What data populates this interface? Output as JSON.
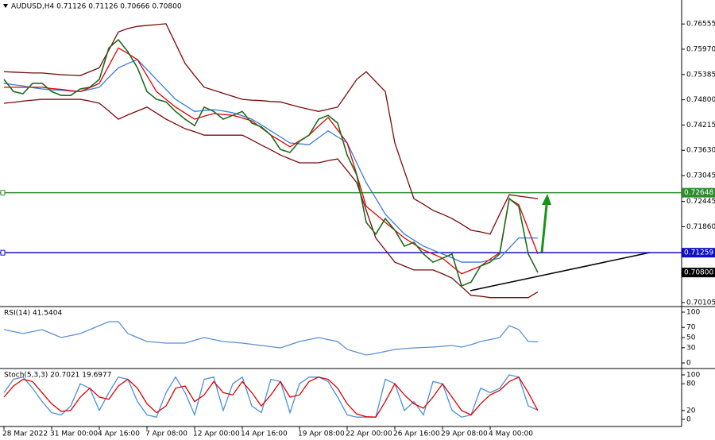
{
  "chart_data": [
    {
      "type": "line",
      "title": "AUDUSD,H4  0.71126 0.71126 0.70666 0.70800",
      "categories": [
        "28 Mar 2022",
        null,
        null,
        null,
        null,
        "31 Mar 00:00",
        null,
        null,
        null,
        null,
        "4 Apr 16:00",
        null,
        null,
        null,
        null,
        "7 Apr 08:00",
        null,
        null,
        null,
        null,
        "12 Apr 00:00",
        null,
        null,
        null,
        null,
        "14 Apr 16:00",
        null,
        null,
        null,
        null,
        null,
        "19 Apr 08:00",
        null,
        null,
        null,
        null,
        "22 Apr 00:00",
        null,
        null,
        null,
        null,
        "26 Apr 16:00",
        null,
        null,
        null,
        null,
        "29 Apr 08:00",
        null,
        null,
        null,
        null,
        "4 May 00:00",
        null,
        null,
        null,
        null,
        null
      ],
      "series": [
        {
          "color": "#7a0a0a",
          "values": [
            0.7545,
            0.7544,
            0.7543,
            0.7542,
            0.7542,
            0.754,
            0.7538,
            0.7537,
            0.7536,
            0.7545,
            0.7554,
            0.7595,
            0.7637,
            0.7645,
            0.765,
            0.7652,
            0.7654,
            0.7656,
            0.761,
            0.7564,
            0.7536,
            0.7509,
            0.7502,
            0.7495,
            0.7488,
            0.7481,
            0.7479,
            0.7478,
            0.7476,
            0.7475,
            0.7469,
            0.7463,
            0.7458,
            0.7453,
            0.7458,
            0.7463,
            0.7495,
            0.7527,
            0.7545,
            0.7522,
            0.7499,
            0.738,
            0.7315,
            0.7251,
            0.7238,
            0.7224,
            0.7215,
            0.7205,
            0.7192,
            0.7178,
            0.7174,
            0.7169,
            0.7215,
            0.726,
            0.7257,
            0.7254,
            0.7251
          ]
        },
        {
          "color": "#7a0a0a",
          "values": [
            0.7472,
            0.7474,
            0.7477,
            0.7479,
            0.7481,
            0.7481,
            0.7481,
            0.7481,
            0.7481,
            0.7477,
            0.7472,
            0.7454,
            0.7435,
            0.7445,
            0.7454,
            0.7463,
            0.7449,
            0.7435,
            0.7424,
            0.7413,
            0.7406,
            0.7398,
            0.7398,
            0.7398,
            0.7398,
            0.7398,
            0.7387,
            0.7375,
            0.7364,
            0.7352,
            0.7343,
            0.7334,
            0.7334,
            0.7334,
            0.7339,
            0.7343,
            0.7316,
            0.7288,
            0.7224,
            0.716,
            0.7132,
            0.7104,
            0.7095,
            0.7086,
            0.7086,
            0.7086,
            0.7077,
            0.7067,
            0.7047,
            0.7027,
            0.7025,
            0.7022,
            0.7022,
            0.7022,
            0.7022,
            0.7022,
            0.7035
          ]
        },
        {
          "color": "#3d7bd9",
          "values": [
            0.7518,
            0.7515,
            0.7512,
            0.7508,
            0.7505,
            0.7503,
            0.7502,
            0.75,
            0.7499,
            0.7504,
            0.7509,
            0.7532,
            0.7554,
            0.7564,
            0.7573,
            0.755,
            0.7527,
            0.7504,
            0.7481,
            0.7467,
            0.7453,
            0.7455,
            0.7457,
            0.7454,
            0.745,
            0.7443,
            0.7435,
            0.7422,
            0.7408,
            0.7394,
            0.738,
            0.7378,
            0.7376,
            0.7392,
            0.7408,
            0.7394,
            0.738,
            0.7334,
            0.7288,
            0.7252,
            0.7215,
            0.7192,
            0.7169,
            0.7155,
            0.7141,
            0.7132,
            0.7123,
            0.7114,
            0.7104,
            0.7104,
            0.7104,
            0.7109,
            0.7113,
            0.7137,
            0.716,
            0.716,
            0.716
          ]
        },
        {
          "color": "#e00000",
          "values": [
            0.7509,
            0.7509,
            0.7509,
            0.7509,
            0.7509,
            0.7506,
            0.7504,
            0.7501,
            0.7499,
            0.7508,
            0.7518,
            0.7559,
            0.76,
            0.7587,
            0.7573,
            0.7536,
            0.7499,
            0.7481,
            0.7463,
            0.7449,
            0.7435,
            0.7442,
            0.7448,
            0.7446,
            0.7444,
            0.7438,
            0.7431,
            0.7415,
            0.7398,
            0.7385,
            0.7371,
            0.7385,
            0.7398,
            0.7419,
            0.7439,
            0.741,
            0.738,
            0.7307,
            0.7233,
            0.7215,
            0.7196,
            0.7178,
            0.716,
            0.7146,
            0.7132,
            0.7123,
            0.7113,
            0.7095,
            0.7077,
            0.7086,
            0.7095,
            0.7111,
            0.7126,
            0.7251,
            0.7237,
            0.718,
            0.7123
          ]
        },
        {
          "color": "#1f6b1f",
          "values": [
            0.7527,
            0.7499,
            0.7494,
            0.7518,
            0.7518,
            0.7499,
            0.749,
            0.749,
            0.7505,
            0.7509,
            0.7527,
            0.76,
            0.7619,
            0.7591,
            0.7554,
            0.7499,
            0.7481,
            0.7475,
            0.7453,
            0.7435,
            0.742,
            0.7463,
            0.7453,
            0.7435,
            0.7444,
            0.7453,
            0.7426,
            0.7417,
            0.7398,
            0.7365,
            0.7358,
            0.7384,
            0.7398,
            0.7435,
            0.7444,
            0.7426,
            0.7352,
            0.7306,
            0.7196,
            0.7169,
            0.7205,
            0.7178,
            0.7141,
            0.715,
            0.7123,
            0.7104,
            0.7113,
            0.7123,
            0.7049,
            0.7058,
            0.7095,
            0.7104,
            0.7123,
            0.7251,
            0.7233,
            0.7123,
            0.708
          ]
        }
      ],
      "hlines": [
        {
          "value": 0.72648,
          "label": "0.72648",
          "color": "#2e8b2e"
        },
        {
          "value": 0.71259,
          "label": "0.71259",
          "color": "#1010c0"
        }
      ],
      "last_price": {
        "value": 0.708,
        "label": "0.70800"
      },
      "ylim": [
        0.7003,
        0.7711
      ],
      "yticks": [
        {
          "value": 0.76555,
          "label": "0.76555"
        },
        {
          "value": 0.7597,
          "label": "0.75970"
        },
        {
          "value": 0.75385,
          "label": "0.75385"
        },
        {
          "value": 0.748,
          "label": "0.74800"
        },
        {
          "value": 0.74215,
          "label": "0.74215"
        },
        {
          "value": 0.7363,
          "label": "0.73630"
        },
        {
          "value": 0.73045,
          "label": "0.73045"
        },
        {
          "value": 0.72445,
          "label": "0.72445"
        },
        {
          "value": 0.7186,
          "label": "0.71860"
        },
        {
          "value": 0.70105,
          "label": "0.70105"
        }
      ]
    },
    {
      "type": "line",
      "title": "RSI(14) 41.5404",
      "series": [
        {
          "color": "#5b8fd6",
          "values": [
            65.6,
            61.7,
            57.8,
            61.7,
            65.6,
            57.8,
            50,
            53.9,
            57.8,
            65.6,
            73.4,
            81.3,
            81.3,
            57.8,
            50,
            42.2,
            40.6,
            39.1,
            39.1,
            39.1,
            44.5,
            50,
            46.1,
            42.2,
            40.6,
            39.1,
            36.7,
            34.4,
            32,
            29.7,
            35.9,
            42.2,
            46.1,
            50,
            46.1,
            42.2,
            26.6,
            21.1,
            15.6,
            18.8,
            22.7,
            26.6,
            28.1,
            29.7,
            30.5,
            31.3,
            32.8,
            34.4,
            31.3,
            35.9,
            42.2,
            46.1,
            50,
            73.4,
            65.6,
            42.2,
            41.5404
          ]
        }
      ],
      "ylim": [
        0,
        100
      ],
      "yticks": [
        0,
        30,
        50,
        70,
        100
      ]
    },
    {
      "type": "line",
      "title": "Stoch(5,3,3) 20.7021 19.6977",
      "series": [
        {
          "color": "#4a90d9",
          "values": [
            60,
            90,
            95,
            70,
            40,
            15,
            10,
            30,
            80,
            70,
            20,
            60,
            95,
            90,
            40,
            10,
            5,
            60,
            95,
            60,
            10,
            90,
            95,
            20,
            80,
            95,
            30,
            15,
            90,
            85,
            15,
            80,
            95,
            95,
            85,
            50,
            10,
            5,
            5,
            5,
            90,
            80,
            20,
            40,
            10,
            85,
            80,
            20,
            5,
            10,
            70,
            60,
            70,
            100,
            95,
            30,
            20.7021
          ]
        },
        {
          "color": "#e00000",
          "values": [
            50,
            75,
            90,
            85,
            60,
            35,
            18,
            20,
            50,
            70,
            50,
            45,
            75,
            90,
            70,
            35,
            15,
            30,
            70,
            75,
            40,
            55,
            85,
            60,
            55,
            85,
            60,
            30,
            55,
            85,
            50,
            55,
            85,
            95,
            90,
            70,
            35,
            12,
            6,
            5,
            40,
            80,
            55,
            35,
            25,
            50,
            80,
            50,
            20,
            10,
            35,
            55,
            65,
            85,
            95,
            60,
            19.6977
          ]
        }
      ],
      "ylim": [
        0,
        100
      ],
      "yticks": [
        0,
        20,
        80,
        100
      ]
    }
  ]
}
